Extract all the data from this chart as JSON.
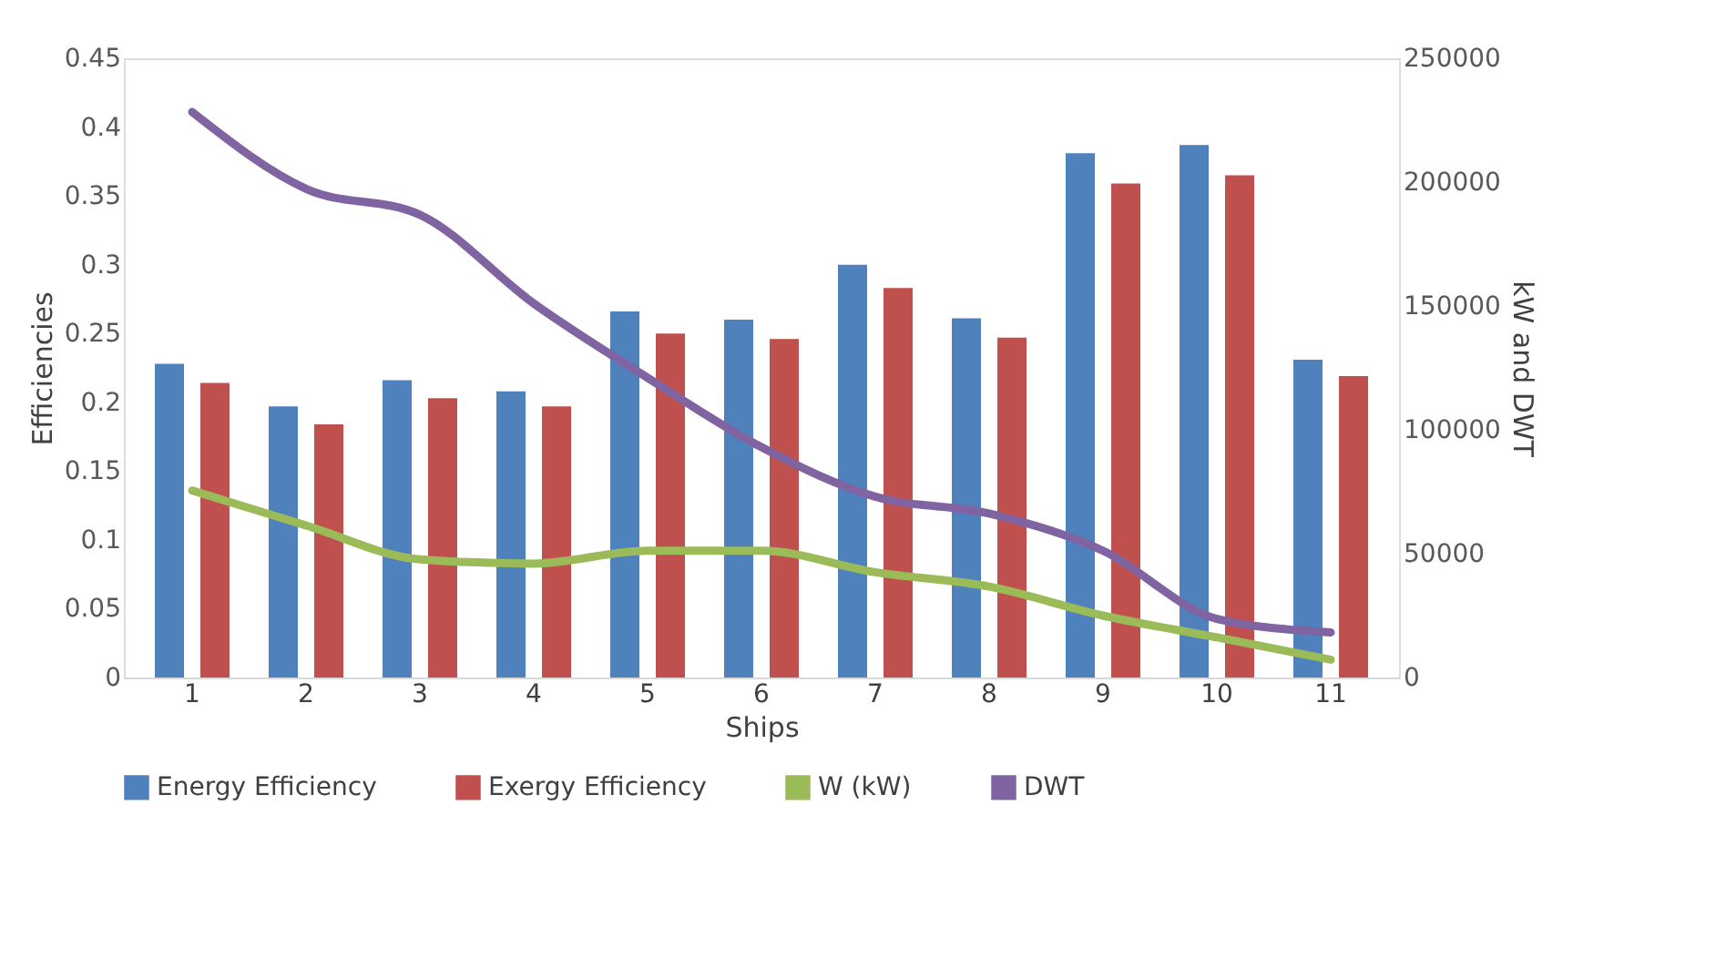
{
  "chart_data": {
    "type": "bar",
    "xlabel": "Ships",
    "ylabel": "Efficiencies",
    "y2label": "kW and DWT",
    "categories": [
      "1",
      "2",
      "3",
      "4",
      "5",
      "6",
      "7",
      "8",
      "9",
      "10",
      "11"
    ],
    "series": [
      {
        "name": "Energy Efficiency",
        "color": "#4f81bd",
        "values": [
          0.228,
          0.197,
          0.216,
          0.208,
          0.266,
          0.26,
          0.3,
          0.261,
          0.381,
          0.387,
          0.231
        ]
      },
      {
        "name": "Exergy Efficiency",
        "color": "#c0504d",
        "values": [
          0.214,
          0.184,
          0.203,
          0.197,
          0.25,
          0.246,
          0.283,
          0.247,
          0.359,
          0.365,
          0.219
        ]
      },
      {
        "name": "W (kW)",
        "type": "line",
        "axis": "y2",
        "color": "#9bbb59",
        "values": [
          75500,
          61400,
          47700,
          46000,
          51200,
          51200,
          42500,
          36700,
          25000,
          16200,
          7200
        ]
      },
      {
        "name": "DWT",
        "type": "line",
        "axis": "y2",
        "color": "#8064a2",
        "values": [
          228300,
          197300,
          186800,
          151000,
          121000,
          93000,
          73000,
          66200,
          51200,
          23700,
          18200
        ]
      }
    ],
    "ylim": [
      0,
      0.45
    ],
    "yticks": [
      0,
      0.05,
      0.1,
      0.15,
      0.2,
      0.25,
      0.3,
      0.35,
      0.4,
      0.45
    ],
    "y2lim": [
      0,
      250000
    ],
    "y2ticks": [
      0,
      50000,
      100000,
      150000,
      200000,
      250000
    ],
    "grid": false,
    "legend": "bottom",
    "line_style": "solid",
    "marker": "none"
  }
}
